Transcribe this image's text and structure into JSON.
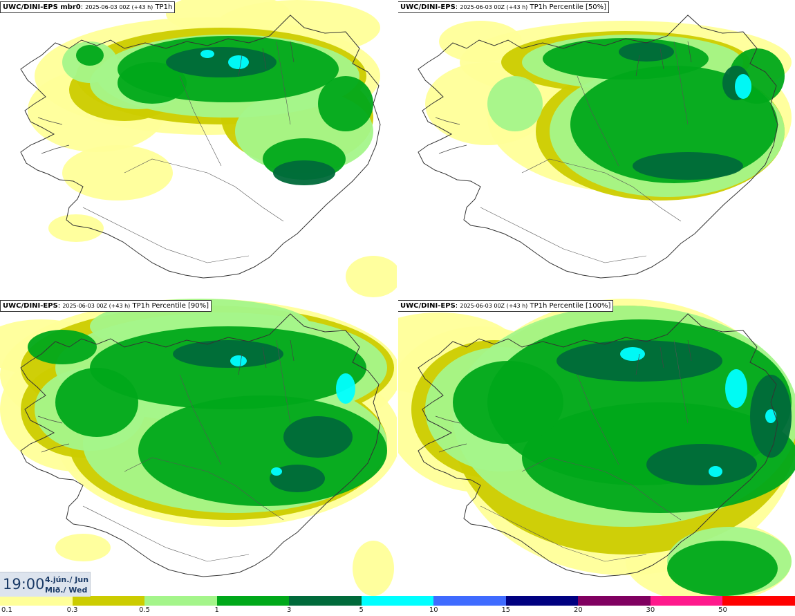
{
  "panels": [
    {
      "model": "UWC/DINI-EPS mbr0",
      "run": "2025-06-03 00Z (+43 h)",
      "field": "TP1h"
    },
    {
      "model": "UWC/DINI-EPS",
      "run": "2025-06-03 00Z (+43 h)",
      "field": "TP1h Percentile [50%]"
    },
    {
      "model": "UWC/DINI-EPS",
      "run": "2025-06-03 00Z (+43 h)",
      "field": "TP1h Percentile [90%]"
    },
    {
      "model": "UWC/DINI-EPS",
      "run": "2025-06-03 00Z (+43 h)",
      "field": "TP1h Percentile [100%]"
    }
  ],
  "valid_time": {
    "time": "19:00",
    "date_line1": "4.jún./ Jun",
    "date_line2": "Mið./ Wed"
  },
  "legend": {
    "labels": [
      "0.1",
      "0.3",
      "0.5",
      "1",
      "3",
      "5",
      "10",
      "15",
      "20",
      "30",
      "50"
    ],
    "colors": [
      "#ffff99",
      "#cccc00",
      "#a4f58a",
      "#00a81a",
      "#006a3a",
      "#00ffff",
      "#3f6bff",
      "#000080",
      "#800060",
      "#ff1a8c",
      "#ff0000"
    ]
  },
  "colors": {
    "yellow_light": "#ffff99",
    "olive": "#cccc00",
    "light_green": "#a4f58a",
    "green": "#00a81a",
    "dark_green": "#006a3a",
    "cyan": "#00ffff",
    "coast": "#333333"
  }
}
